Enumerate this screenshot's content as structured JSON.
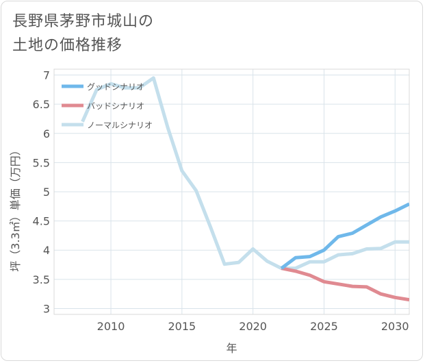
{
  "title": "長野県茅野市城山の\n土地の価格推移",
  "chart_data": {
    "type": "line",
    "xlabel": "年",
    "ylabel": "坪（3.3㎡）単価（万円）",
    "xlim": [
      2006,
      2031
    ],
    "ylim": [
      2.9,
      7.1
    ],
    "xticks": [
      2010,
      2015,
      2020,
      2025,
      2030
    ],
    "yticks": [
      3,
      3.5,
      4,
      4.5,
      5,
      5.5,
      6,
      6.5,
      7
    ],
    "ytick_labels": [
      "3",
      "3.5",
      "4",
      "4.5",
      "5",
      "5.5",
      "6",
      "6.5",
      "7"
    ],
    "grid": true,
    "legend_position": "top-left",
    "series": [
      {
        "name": "グッドシナリオ",
        "color": "#6fb8ea",
        "x": [
          2022,
          2023,
          2024,
          2025,
          2026,
          2027,
          2028,
          2029,
          2030,
          2031
        ],
        "values": [
          3.69,
          3.87,
          3.89,
          4.0,
          4.23,
          4.29,
          4.43,
          4.57,
          4.67,
          4.79
        ]
      },
      {
        "name": "バッドシナリオ",
        "color": "#e08a91",
        "x": [
          2022,
          2023,
          2024,
          2025,
          2026,
          2027,
          2028,
          2029,
          2030,
          2031
        ],
        "values": [
          3.69,
          3.64,
          3.57,
          3.46,
          3.42,
          3.38,
          3.37,
          3.25,
          3.19,
          3.15
        ]
      },
      {
        "name": "ノーマルシナリオ",
        "color": "#c4dfec",
        "x": [
          2008,
          2009,
          2010,
          2011,
          2012,
          2013,
          2014,
          2015,
          2016,
          2017,
          2018,
          2019,
          2020,
          2021,
          2022,
          2023,
          2024,
          2025,
          2026,
          2027,
          2028,
          2029,
          2030,
          2031
        ],
        "values": [
          6.2,
          6.75,
          6.85,
          6.78,
          6.78,
          6.95,
          6.1,
          5.36,
          5.02,
          4.4,
          3.76,
          3.79,
          4.02,
          3.81,
          3.69,
          3.69,
          3.8,
          3.8,
          3.92,
          3.94,
          4.02,
          4.03,
          4.14,
          4.14
        ]
      }
    ]
  }
}
